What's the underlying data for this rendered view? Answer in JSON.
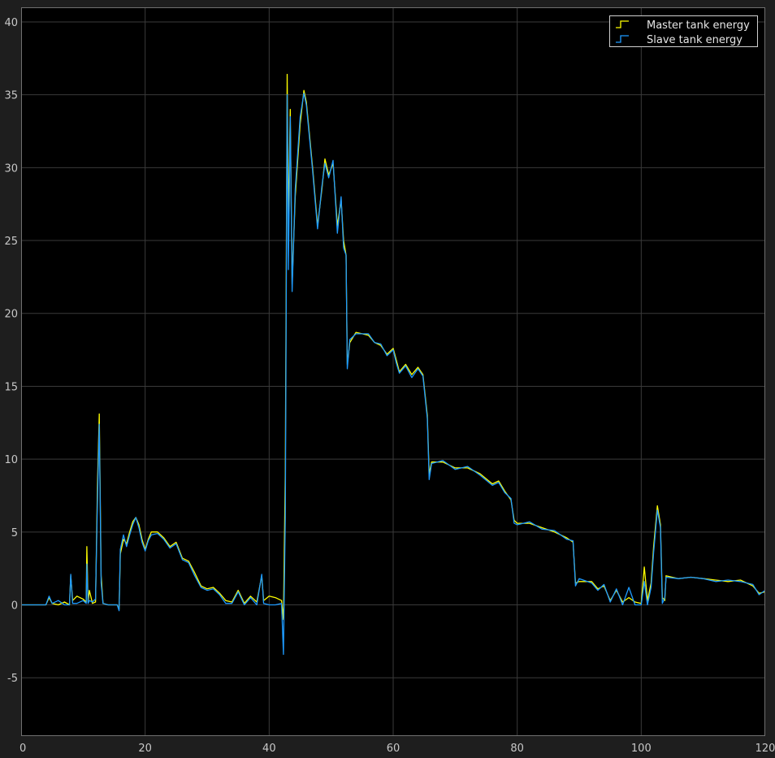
{
  "chart_data": {
    "type": "line",
    "title": "",
    "xlabel": "",
    "ylabel": "",
    "xlim": [
      0,
      120
    ],
    "ylim": [
      -9,
      41
    ],
    "xticks": [
      "0",
      "20",
      "40",
      "60",
      "80",
      "100",
      "120"
    ],
    "yticks": [
      "-5",
      "0",
      "5",
      "10",
      "15",
      "20",
      "25",
      "30",
      "35",
      "40"
    ],
    "grid": true,
    "legend_position": "top-right",
    "series": [
      {
        "name": "Master tank energy",
        "color": "#ffff00",
        "points": [
          [
            0,
            0
          ],
          [
            4,
            0
          ],
          [
            4.5,
            0.5
          ],
          [
            5,
            0.1
          ],
          [
            6,
            0
          ],
          [
            7,
            0.2
          ],
          [
            7.8,
            0
          ],
          [
            8,
            2
          ],
          [
            8.3,
            0.3
          ],
          [
            9,
            0.6
          ],
          [
            10,
            0.4
          ],
          [
            10.5,
            0.2
          ],
          [
            10.6,
            4
          ],
          [
            10.8,
            0.2
          ],
          [
            11,
            1
          ],
          [
            11.5,
            0.1
          ],
          [
            12,
            0.2
          ],
          [
            12.3,
            8
          ],
          [
            12.6,
            13.1
          ],
          [
            12.9,
            2
          ],
          [
            13.2,
            0.1
          ],
          [
            14,
            0
          ],
          [
            15.5,
            0
          ],
          [
            15.8,
            -0.3
          ],
          [
            16,
            3.5
          ],
          [
            16.5,
            4.5
          ],
          [
            17,
            4.2
          ],
          [
            17.5,
            5
          ],
          [
            18,
            5.7
          ],
          [
            18.5,
            6
          ],
          [
            19,
            5.5
          ],
          [
            19.5,
            4.5
          ],
          [
            20,
            3.8
          ],
          [
            20.5,
            4.5
          ],
          [
            21,
            5
          ],
          [
            22,
            5
          ],
          [
            23,
            4.6
          ],
          [
            24,
            4
          ],
          [
            25,
            4.3
          ],
          [
            26,
            3.2
          ],
          [
            27,
            3
          ],
          [
            28,
            2.2
          ],
          [
            29,
            1.3
          ],
          [
            30,
            1.1
          ],
          [
            31,
            1.2
          ],
          [
            32,
            0.8
          ],
          [
            33,
            0.3
          ],
          [
            34,
            0.2
          ],
          [
            35,
            1
          ],
          [
            36,
            0.1
          ],
          [
            37,
            0.6
          ],
          [
            38,
            0.2
          ],
          [
            38.8,
            2
          ],
          [
            39.1,
            0.3
          ],
          [
            40,
            0.6
          ],
          [
            41,
            0.5
          ],
          [
            42,
            0.3
          ],
          [
            42.3,
            -1
          ],
          [
            42.6,
            9
          ],
          [
            42.9,
            36.4
          ],
          [
            43.1,
            26
          ],
          [
            43.4,
            34
          ],
          [
            43.7,
            22
          ],
          [
            44.2,
            28
          ],
          [
            45,
            33
          ],
          [
            45.6,
            35.3
          ],
          [
            46,
            34.5
          ],
          [
            47,
            30
          ],
          [
            47.8,
            26
          ],
          [
            48.5,
            28.5
          ],
          [
            49,
            30.6
          ],
          [
            49.6,
            29.5
          ],
          [
            50.3,
            30.3
          ],
          [
            51,
            26
          ],
          [
            51.6,
            27.8
          ],
          [
            52,
            25
          ],
          [
            52.4,
            24
          ],
          [
            52.6,
            16.5
          ],
          [
            53,
            18
          ],
          [
            54,
            18.7
          ],
          [
            56,
            18.5
          ],
          [
            57,
            18
          ],
          [
            58,
            17.8
          ],
          [
            59,
            17.2
          ],
          [
            60,
            17.6
          ],
          [
            60.5,
            16.8
          ],
          [
            61,
            16
          ],
          [
            62,
            16.5
          ],
          [
            63,
            15.8
          ],
          [
            64,
            16.3
          ],
          [
            64.8,
            15.8
          ],
          [
            65.5,
            13
          ],
          [
            65.8,
            9
          ],
          [
            66.2,
            9.8
          ],
          [
            68,
            9.8
          ],
          [
            70,
            9.4
          ],
          [
            72,
            9.4
          ],
          [
            74,
            9
          ],
          [
            76,
            8.3
          ],
          [
            77,
            8.5
          ],
          [
            78,
            7.8
          ],
          [
            79,
            7.2
          ],
          [
            79.5,
            5.8
          ],
          [
            80,
            5.6
          ],
          [
            82,
            5.6
          ],
          [
            84,
            5.3
          ],
          [
            86,
            5
          ],
          [
            88,
            4.6
          ],
          [
            89,
            4.3
          ],
          [
            89.4,
            1.5
          ],
          [
            90,
            1.6
          ],
          [
            92,
            1.6
          ],
          [
            93,
            1.1
          ],
          [
            94,
            1.3
          ],
          [
            95,
            0.3
          ],
          [
            96,
            1
          ],
          [
            97,
            0.2
          ],
          [
            98,
            0.5
          ],
          [
            99,
            0.2
          ],
          [
            100,
            0.1
          ],
          [
            100.5,
            2.6
          ],
          [
            101,
            0.3
          ],
          [
            101.6,
            1.5
          ],
          [
            102,
            4
          ],
          [
            102.6,
            6.8
          ],
          [
            103.1,
            5.5
          ],
          [
            103.4,
            0.5
          ],
          [
            103.8,
            0.3
          ],
          [
            104,
            2
          ],
          [
            106,
            1.8
          ],
          [
            108,
            1.9
          ],
          [
            110,
            1.8
          ],
          [
            112,
            1.7
          ],
          [
            114,
            1.6
          ],
          [
            116,
            1.7
          ],
          [
            118,
            1.3
          ],
          [
            119,
            0.8
          ],
          [
            120,
            0.9
          ]
        ]
      },
      {
        "name": "Slave tank energy",
        "color": "#1e9bff",
        "points": [
          [
            0,
            0
          ],
          [
            4,
            0
          ],
          [
            4.5,
            0.6
          ],
          [
            5,
            0.1
          ],
          [
            6,
            0.3
          ],
          [
            7,
            0
          ],
          [
            7.8,
            0
          ],
          [
            8,
            2.1
          ],
          [
            8.3,
            0.1
          ],
          [
            9,
            0.1
          ],
          [
            10,
            0.3
          ],
          [
            10.5,
            0.1
          ],
          [
            10.6,
            2.8
          ],
          [
            10.8,
            0.1
          ],
          [
            11,
            0.3
          ],
          [
            11.5,
            0.2
          ],
          [
            12,
            0.4
          ],
          [
            12.3,
            7
          ],
          [
            12.6,
            12.4
          ],
          [
            12.9,
            1.5
          ],
          [
            13.2,
            0.1
          ],
          [
            14,
            0
          ],
          [
            15.5,
            0
          ],
          [
            15.8,
            -0.4
          ],
          [
            16,
            3.8
          ],
          [
            16.5,
            4.8
          ],
          [
            17,
            4
          ],
          [
            17.5,
            4.8
          ],
          [
            18,
            5.5
          ],
          [
            18.5,
            6
          ],
          [
            19,
            5.3
          ],
          [
            19.5,
            4.3
          ],
          [
            20,
            3.7
          ],
          [
            20.5,
            4.4
          ],
          [
            21,
            4.8
          ],
          [
            22,
            4.9
          ],
          [
            23,
            4.5
          ],
          [
            24,
            3.9
          ],
          [
            25,
            4.2
          ],
          [
            26,
            3.1
          ],
          [
            27,
            2.9
          ],
          [
            28,
            2
          ],
          [
            29,
            1.2
          ],
          [
            30,
            1
          ],
          [
            31,
            1.1
          ],
          [
            32,
            0.7
          ],
          [
            33,
            0.1
          ],
          [
            34,
            0.1
          ],
          [
            35,
            0.9
          ],
          [
            36,
            0
          ],
          [
            37,
            0.5
          ],
          [
            38,
            0
          ],
          [
            38.8,
            2.1
          ],
          [
            39.1,
            0.1
          ],
          [
            40,
            0
          ],
          [
            41,
            0
          ],
          [
            42,
            0.1
          ],
          [
            42.3,
            -3.4
          ],
          [
            42.6,
            6
          ],
          [
            42.9,
            35
          ],
          [
            43.1,
            23
          ],
          [
            43.4,
            33.5
          ],
          [
            43.7,
            21.5
          ],
          [
            44.2,
            28.5
          ],
          [
            45,
            33.5
          ],
          [
            45.6,
            35.1
          ],
          [
            46,
            34.3
          ],
          [
            47,
            29.8
          ],
          [
            47.8,
            25.8
          ],
          [
            48.5,
            28.7
          ],
          [
            49,
            30.3
          ],
          [
            49.6,
            29.3
          ],
          [
            50.3,
            30.5
          ],
          [
            51,
            25.5
          ],
          [
            51.6,
            28
          ],
          [
            52,
            24.5
          ],
          [
            52.4,
            24
          ],
          [
            52.6,
            16.2
          ],
          [
            53,
            18.2
          ],
          [
            54,
            18.6
          ],
          [
            56,
            18.6
          ],
          [
            57,
            18
          ],
          [
            58,
            17.9
          ],
          [
            59,
            17.1
          ],
          [
            60,
            17.5
          ],
          [
            60.5,
            16.6
          ],
          [
            61,
            15.9
          ],
          [
            62,
            16.4
          ],
          [
            63,
            15.6
          ],
          [
            64,
            16.2
          ],
          [
            64.8,
            15.7
          ],
          [
            65.5,
            12.8
          ],
          [
            65.8,
            8.6
          ],
          [
            66.2,
            9.7
          ],
          [
            68,
            9.9
          ],
          [
            70,
            9.3
          ],
          [
            72,
            9.5
          ],
          [
            74,
            8.9
          ],
          [
            76,
            8.2
          ],
          [
            77,
            8.4
          ],
          [
            78,
            7.7
          ],
          [
            79,
            7.3
          ],
          [
            79.5,
            5.6
          ],
          [
            80,
            5.5
          ],
          [
            82,
            5.7
          ],
          [
            84,
            5.2
          ],
          [
            86,
            5.1
          ],
          [
            88,
            4.5
          ],
          [
            89,
            4.4
          ],
          [
            89.4,
            1.3
          ],
          [
            90,
            1.8
          ],
          [
            92,
            1.5
          ],
          [
            93,
            1
          ],
          [
            94,
            1.4
          ],
          [
            95,
            0.2
          ],
          [
            96,
            1.1
          ],
          [
            97,
            0
          ],
          [
            98,
            1.2
          ],
          [
            99,
            0
          ],
          [
            100,
            0
          ],
          [
            100.5,
            1.6
          ],
          [
            101,
            0
          ],
          [
            101.6,
            1.2
          ],
          [
            102,
            3.6
          ],
          [
            102.6,
            6.5
          ],
          [
            103.1,
            5.3
          ],
          [
            103.4,
            0.1
          ],
          [
            103.8,
            0.5
          ],
          [
            104,
            1.9
          ],
          [
            106,
            1.8
          ],
          [
            108,
            1.9
          ],
          [
            110,
            1.8
          ],
          [
            112,
            1.6
          ],
          [
            114,
            1.7
          ],
          [
            116,
            1.6
          ],
          [
            118,
            1.4
          ],
          [
            119,
            0.7
          ],
          [
            120,
            1
          ]
        ]
      }
    ]
  }
}
